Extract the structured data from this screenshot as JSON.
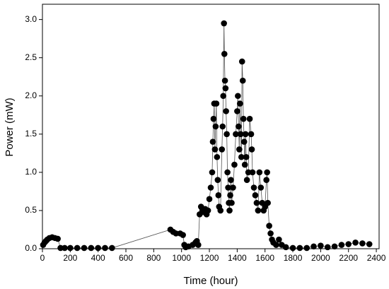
{
  "chart_data": {
    "type": "scatter",
    "line": true,
    "color": "#000000",
    "line_color": "#555555",
    "xlabel": "Time (hour)",
    "ylabel": "Power (mW)",
    "xlim": [
      0,
      2420
    ],
    "ylim": [
      0,
      3.2
    ],
    "xticks": [
      0,
      200,
      400,
      600,
      800,
      1000,
      1200,
      1400,
      1600,
      1800,
      2000,
      2200,
      2400
    ],
    "yticks": [
      {
        "value": 0,
        "label": "0.0"
      },
      0.5,
      {
        "value": 1,
        "label": "1.0"
      },
      1.5,
      {
        "value": 2,
        "label": "2.0"
      },
      2.5,
      {
        "value": 3,
        "label": "3.0"
      }
    ],
    "x": [
      5,
      15,
      25,
      35,
      50,
      70,
      90,
      110,
      130,
      160,
      200,
      250,
      300,
      350,
      400,
      450,
      500,
      920,
      940,
      960,
      990,
      1010,
      1020,
      1030,
      1050,
      1080,
      1100,
      1110,
      1120,
      1130,
      1140,
      1150,
      1160,
      1170,
      1180,
      1190,
      1200,
      1210,
      1220,
      1225,
      1230,
      1235,
      1240,
      1245,
      1250,
      1255,
      1260,
      1265,
      1270,
      1280,
      1290,
      1295,
      1300,
      1305,
      1308,
      1312,
      1316,
      1320,
      1325,
      1330,
      1335,
      1340,
      1345,
      1350,
      1355,
      1360,
      1370,
      1380,
      1390,
      1400,
      1405,
      1410,
      1415,
      1420,
      1425,
      1430,
      1435,
      1440,
      1445,
      1450,
      1455,
      1460,
      1465,
      1470,
      1480,
      1490,
      1500,
      1505,
      1510,
      1520,
      1530,
      1540,
      1550,
      1560,
      1570,
      1580,
      1590,
      1600,
      1610,
      1615,
      1620,
      1630,
      1640,
      1650,
      1660,
      1680,
      1700,
      1720,
      1750,
      1800,
      1850,
      1900,
      1950,
      2000,
      2050,
      2100,
      2150,
      2200,
      2250,
      2300,
      2350
    ],
    "values": [
      0.05,
      0.08,
      0.1,
      0.12,
      0.14,
      0.15,
      0.14,
      0.13,
      0.01,
      0.01,
      0.01,
      0.01,
      0.01,
      0.01,
      0.01,
      0.01,
      0.01,
      0.25,
      0.22,
      0.2,
      0.2,
      0.18,
      0.05,
      0.02,
      0.03,
      0.05,
      0.08,
      0.1,
      0.05,
      0.45,
      0.55,
      0.5,
      0.48,
      0.52,
      0.45,
      0.5,
      0.65,
      0.8,
      1.0,
      1.4,
      1.7,
      1.9,
      1.3,
      1.6,
      1.9,
      1.2,
      0.9,
      0.7,
      0.55,
      0.5,
      1.3,
      1.6,
      2.0,
      2.95,
      2.55,
      2.2,
      2.1,
      1.8,
      1.5,
      1.0,
      0.8,
      0.6,
      0.5,
      0.7,
      0.9,
      0.6,
      0.8,
      1.1,
      1.5,
      1.8,
      2.0,
      1.6,
      1.3,
      1.9,
      1.5,
      1.2,
      2.45,
      2.2,
      1.7,
      1.4,
      1.1,
      1.5,
      1.2,
      0.9,
      1.0,
      1.7,
      1.5,
      1.3,
      1.0,
      0.8,
      0.7,
      0.6,
      0.5,
      1.0,
      0.8,
      0.6,
      0.5,
      0.55,
      0.9,
      1.0,
      0.6,
      0.3,
      0.2,
      0.12,
      0.08,
      0.05,
      0.12,
      0.05,
      0.02,
      0.01,
      0.01,
      0.01,
      0.03,
      0.04,
      0.02,
      0.03,
      0.05,
      0.06,
      0.08,
      0.07,
      0.06
    ]
  }
}
